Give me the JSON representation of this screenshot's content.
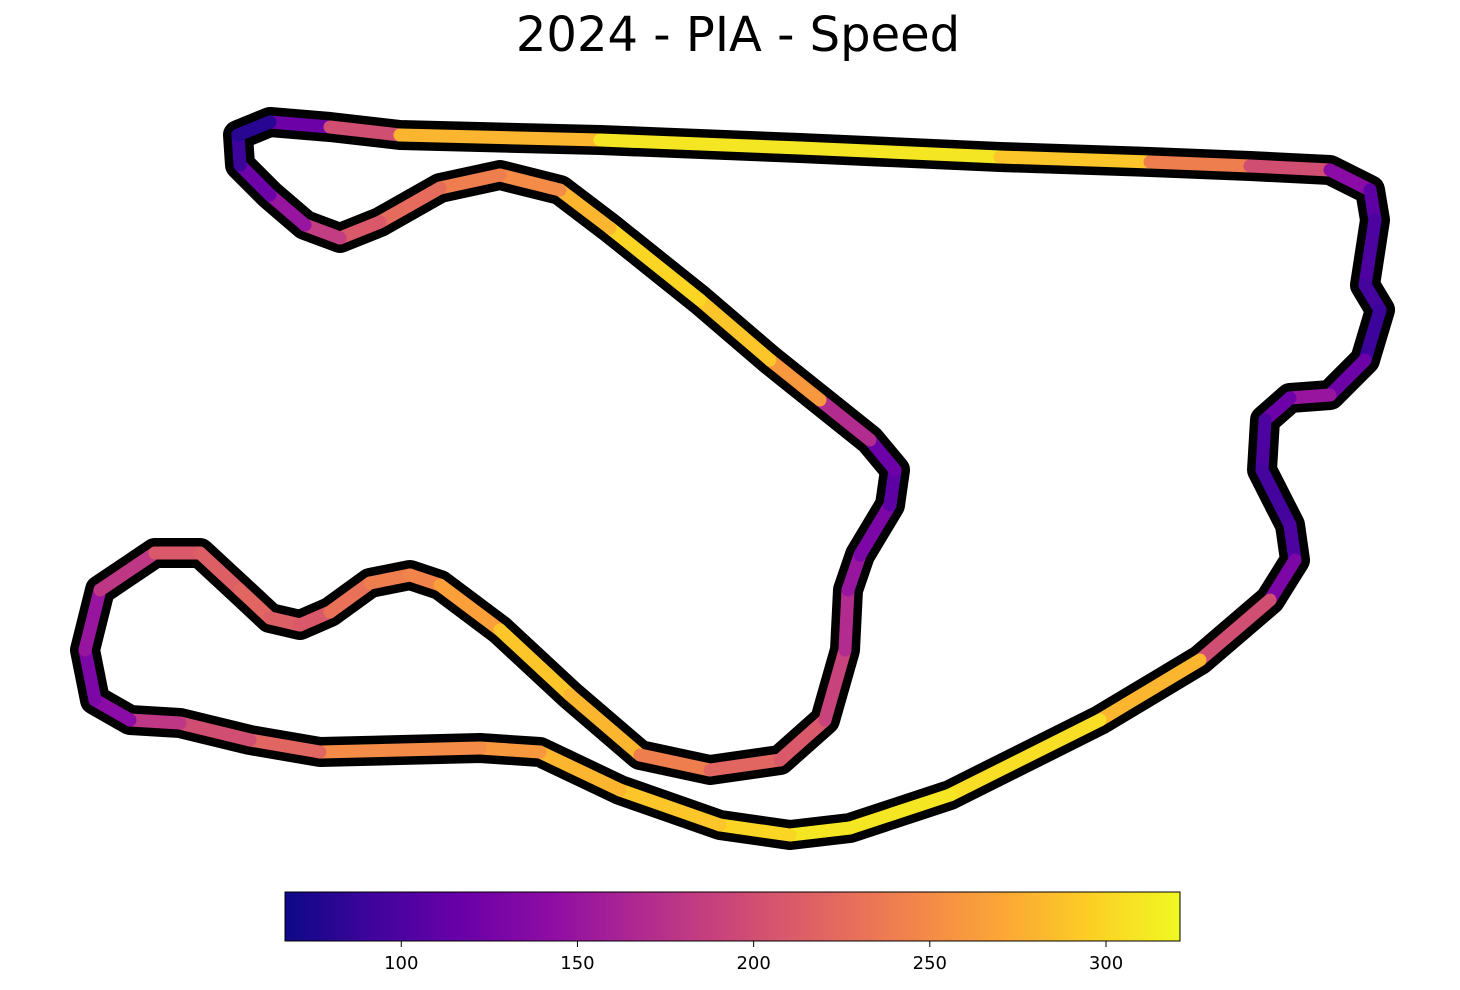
{
  "chart_data": {
    "type": "track",
    "title": "2024 - PIA - Speed",
    "colormap": "plasma",
    "values": [
      120,
      200,
      280,
      310,
      310,
      290,
      240,
      200,
      140,
      110,
      100,
      95,
      90,
      120,
      150,
      120,
      100,
      95,
      100,
      130,
      200,
      280,
      305,
      310,
      310,
      300,
      290,
      280,
      260,
      250,
      220,
      200,
      180,
      140,
      130,
      150,
      180,
      210,
      215,
      220,
      215,
      210,
      230,
      240,
      245,
      265,
      290,
      280,
      240,
      220,
      210,
      190,
      170,
      150,
      130,
      110,
      120,
      170,
      260,
      290,
      300,
      280,
      250,
      240,
      225,
      210,
      185,
      150,
      120,
      90,
      80
    ],
    "clim": [
      67,
      321
    ],
    "cticks": [
      100,
      150,
      200,
      250,
      300
    ]
  }
}
